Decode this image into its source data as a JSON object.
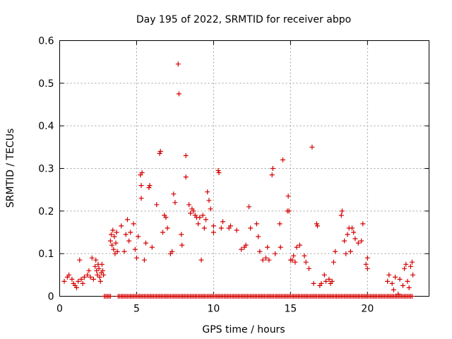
{
  "chart_data": {
    "type": "scatter",
    "title": "Day 195 of 2022, SRMTID for receiver abpo",
    "xlabel": "GPS time / hours",
    "ylabel": "SRMTID / TECUs",
    "xlim": [
      0,
      24
    ],
    "ylim": [
      0,
      0.6
    ],
    "xticks": [
      0,
      5,
      10,
      15,
      20
    ],
    "xtick_labels": [
      "0",
      "5",
      "10",
      "15",
      "20"
    ],
    "yticks": [
      0,
      0.1,
      0.2,
      0.3,
      0.4,
      0.5,
      0.6
    ],
    "ytick_labels": [
      "0",
      "0.1",
      "0.2",
      "0.3",
      "0.4",
      "0.5",
      "0.6"
    ],
    "grid": true,
    "marker": "plus",
    "color": "#d40000",
    "series": [
      {
        "name": "SRMTID",
        "points": [
          [
            0.3,
            0.035
          ],
          [
            0.5,
            0.045
          ],
          [
            0.6,
            0.05
          ],
          [
            0.8,
            0.04
          ],
          [
            0.9,
            0.03
          ],
          [
            1.0,
            0.025
          ],
          [
            1.1,
            0.02
          ],
          [
            1.2,
            0.035
          ],
          [
            1.3,
            0.085
          ],
          [
            1.4,
            0.04
          ],
          [
            1.5,
            0.03
          ],
          [
            1.6,
            0.045
          ],
          [
            1.8,
            0.05
          ],
          [
            1.9,
            0.06
          ],
          [
            2.0,
            0.045
          ],
          [
            2.1,
            0.09
          ],
          [
            2.2,
            0.04
          ],
          [
            2.3,
            0.07
          ],
          [
            2.35,
            0.085
          ],
          [
            2.4,
            0.06
          ],
          [
            2.45,
            0.05
          ],
          [
            2.5,
            0.075
          ],
          [
            2.55,
            0.065
          ],
          [
            2.6,
            0.045
          ],
          [
            2.65,
            0.035
          ],
          [
            2.7,
            0.055
          ],
          [
            2.75,
            0.075
          ],
          [
            2.8,
            0.06
          ],
          [
            2.85,
            0.05
          ],
          [
            3.3,
            0.13
          ],
          [
            3.35,
            0.145
          ],
          [
            3.4,
            0.12
          ],
          [
            3.45,
            0.155
          ],
          [
            3.5,
            0.11
          ],
          [
            3.55,
            0.14
          ],
          [
            3.6,
            0.1
          ],
          [
            3.65,
            0.125
          ],
          [
            3.7,
            0.15
          ],
          [
            3.75,
            0.105
          ],
          [
            4.0,
            0.165
          ],
          [
            4.2,
            0.105
          ],
          [
            4.3,
            0.145
          ],
          [
            4.4,
            0.18
          ],
          [
            4.5,
            0.13
          ],
          [
            4.6,
            0.15
          ],
          [
            4.8,
            0.17
          ],
          [
            4.9,
            0.11
          ],
          [
            5.0,
            0.09
          ],
          [
            5.1,
            0.14
          ],
          [
            5.25,
            0.285
          ],
          [
            5.3,
            0.23
          ],
          [
            5.3,
            0.26
          ],
          [
            5.35,
            0.29
          ],
          [
            5.5,
            0.085
          ],
          [
            5.6,
            0.125
          ],
          [
            5.8,
            0.255
          ],
          [
            5.85,
            0.26
          ],
          [
            6.0,
            0.115
          ],
          [
            6.3,
            0.215
          ],
          [
            6.5,
            0.335
          ],
          [
            6.55,
            0.34
          ],
          [
            6.7,
            0.15
          ],
          [
            6.8,
            0.19
          ],
          [
            6.9,
            0.185
          ],
          [
            7.0,
            0.16
          ],
          [
            7.2,
            0.1
          ],
          [
            7.3,
            0.105
          ],
          [
            7.4,
            0.24
          ],
          [
            7.5,
            0.22
          ],
          [
            7.7,
            0.545
          ],
          [
            7.75,
            0.475
          ],
          [
            7.9,
            0.145
          ],
          [
            7.95,
            0.12
          ],
          [
            8.2,
            0.28
          ],
          [
            8.2,
            0.33
          ],
          [
            8.4,
            0.215
          ],
          [
            8.5,
            0.195
          ],
          [
            8.6,
            0.205
          ],
          [
            8.7,
            0.2
          ],
          [
            8.8,
            0.19
          ],
          [
            8.9,
            0.185
          ],
          [
            9.0,
            0.17
          ],
          [
            9.1,
            0.185
          ],
          [
            9.2,
            0.085
          ],
          [
            9.3,
            0.19
          ],
          [
            9.4,
            0.16
          ],
          [
            9.5,
            0.18
          ],
          [
            9.6,
            0.245
          ],
          [
            9.7,
            0.225
          ],
          [
            9.8,
            0.205
          ],
          [
            10.0,
            0.15
          ],
          [
            10.0,
            0.165
          ],
          [
            10.3,
            0.295
          ],
          [
            10.35,
            0.29
          ],
          [
            10.5,
            0.16
          ],
          [
            10.6,
            0.175
          ],
          [
            11.0,
            0.16
          ],
          [
            11.1,
            0.165
          ],
          [
            11.5,
            0.155
          ],
          [
            11.8,
            0.11
          ],
          [
            12.0,
            0.115
          ],
          [
            12.1,
            0.12
          ],
          [
            12.3,
            0.21
          ],
          [
            12.4,
            0.16
          ],
          [
            12.8,
            0.17
          ],
          [
            12.9,
            0.14
          ],
          [
            13.0,
            0.105
          ],
          [
            13.2,
            0.085
          ],
          [
            13.4,
            0.09
          ],
          [
            13.5,
            0.115
          ],
          [
            13.6,
            0.085
          ],
          [
            13.8,
            0.285
          ],
          [
            13.85,
            0.3
          ],
          [
            14.0,
            0.1
          ],
          [
            14.3,
            0.17
          ],
          [
            14.35,
            0.115
          ],
          [
            14.5,
            0.32
          ],
          [
            14.8,
            0.2
          ],
          [
            14.85,
            0.235
          ],
          [
            14.9,
            0.2
          ],
          [
            15.0,
            0.085
          ],
          [
            15.1,
            0.085
          ],
          [
            15.2,
            0.095
          ],
          [
            15.3,
            0.08
          ],
          [
            15.4,
            0.115
          ],
          [
            15.6,
            0.12
          ],
          [
            15.9,
            0.095
          ],
          [
            16.0,
            0.08
          ],
          [
            16.2,
            0.065
          ],
          [
            16.4,
            0.35
          ],
          [
            16.5,
            0.03
          ],
          [
            16.7,
            0.17
          ],
          [
            16.75,
            0.165
          ],
          [
            16.9,
            0.025
          ],
          [
            17.0,
            0.03
          ],
          [
            17.2,
            0.05
          ],
          [
            17.3,
            0.035
          ],
          [
            17.5,
            0.04
          ],
          [
            17.6,
            0.03
          ],
          [
            17.7,
            0.035
          ],
          [
            17.8,
            0.08
          ],
          [
            17.9,
            0.105
          ],
          [
            18.3,
            0.19
          ],
          [
            18.35,
            0.2
          ],
          [
            18.5,
            0.13
          ],
          [
            18.6,
            0.1
          ],
          [
            18.7,
            0.145
          ],
          [
            18.8,
            0.16
          ],
          [
            18.9,
            0.105
          ],
          [
            19.0,
            0.16
          ],
          [
            19.1,
            0.15
          ],
          [
            19.2,
            0.135
          ],
          [
            19.4,
            0.125
          ],
          [
            19.6,
            0.13
          ],
          [
            19.7,
            0.17
          ],
          [
            19.9,
            0.075
          ],
          [
            20.0,
            0.065
          ],
          [
            20.0,
            0.09
          ],
          [
            21.3,
            0.035
          ],
          [
            21.4,
            0.05
          ],
          [
            21.6,
            0.03
          ],
          [
            21.7,
            0.015
          ],
          [
            21.8,
            0.045
          ],
          [
            22.0,
            0.005
          ],
          [
            22.1,
            0.04
          ],
          [
            22.3,
            0.025
          ],
          [
            22.4,
            0.065
          ],
          [
            22.5,
            0.075
          ],
          [
            22.6,
            0.035
          ],
          [
            22.7,
            0.02
          ],
          [
            22.8,
            0.07
          ],
          [
            22.9,
            0.08
          ],
          [
            22.95,
            0.05
          ]
        ],
        "zero_segments": [
          [
            2.9,
            3.3
          ],
          [
            3.8,
            22.9
          ]
        ],
        "zero_step": 0.1
      }
    ]
  }
}
